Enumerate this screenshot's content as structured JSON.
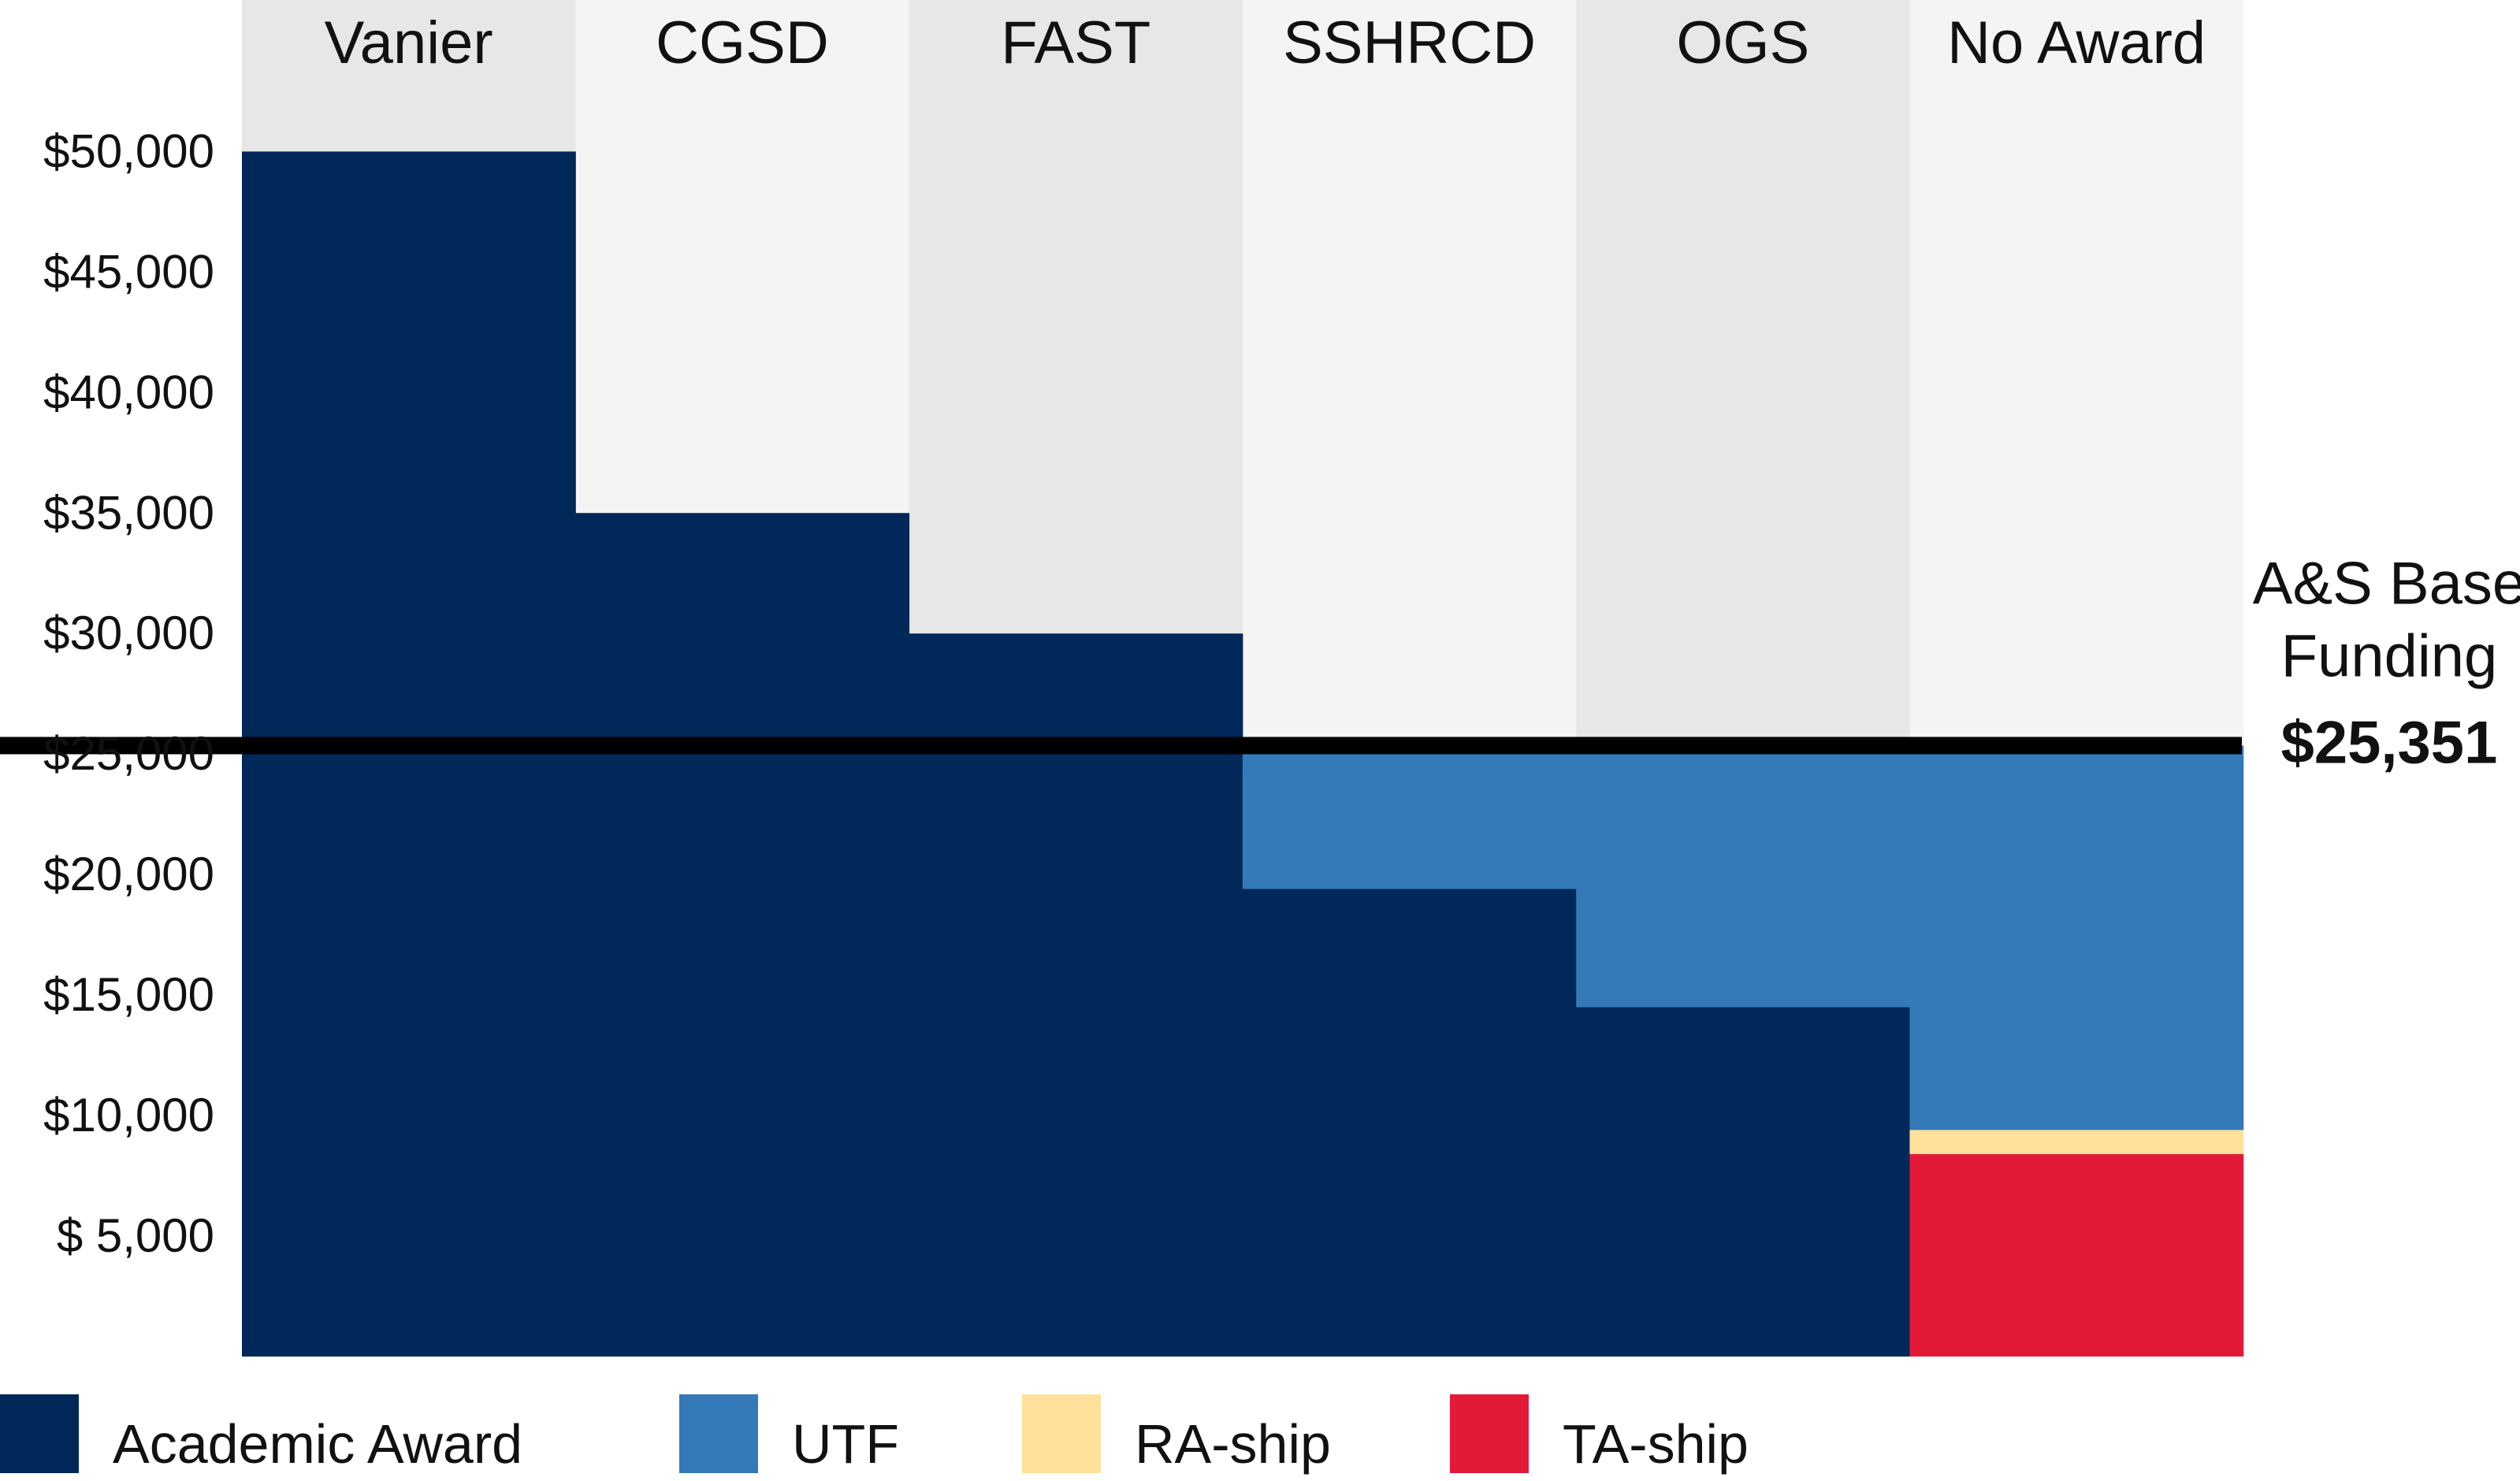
{
  "chart_data": {
    "type": "bar",
    "stacked": true,
    "categories": [
      "Vanier",
      "CGSD",
      "FAST",
      "SSHRCD",
      "OGS",
      "No Award"
    ],
    "series": [
      {
        "name": "Academic Award",
        "color": "#002858",
        "values": [
          50000,
          35000,
          30000,
          19400,
          14500,
          0
        ]
      },
      {
        "name": "UTF",
        "color": "#3479b8",
        "values": [
          0,
          0,
          0,
          5951,
          10851,
          15951
        ]
      },
      {
        "name": "RA-ship",
        "color": "#ffe19b",
        "values": [
          0,
          0,
          0,
          0,
          0,
          1000
        ]
      },
      {
        "name": "TA-ship",
        "color": "#e21a38",
        "values": [
          0,
          0,
          0,
          0,
          0,
          8400
        ]
      }
    ],
    "y_ticks": [
      "$ 5,000",
      "$10,000",
      "$15,000",
      "$20,000",
      "$25,000",
      "$30,000",
      "$35,000",
      "$40,000",
      "$45,000",
      "$50,000"
    ],
    "y_tick_values": [
      5000,
      10000,
      15000,
      20000,
      25000,
      30000,
      35000,
      40000,
      45000,
      50000
    ],
    "ylim": [
      0,
      52800
    ],
    "column_backgrounds": [
      "#e7e7e7",
      "#f4f4f4",
      "#e7e7e7",
      "#f4f4f4",
      "#e7e7e7",
      "#f4f4f4"
    ],
    "reference_line": {
      "value": 25351,
      "label_lines": [
        "A&S Base",
        "Funding"
      ],
      "value_label": "$25,351",
      "color": "#000000"
    },
    "legend_position": "bottom",
    "grid": false
  }
}
